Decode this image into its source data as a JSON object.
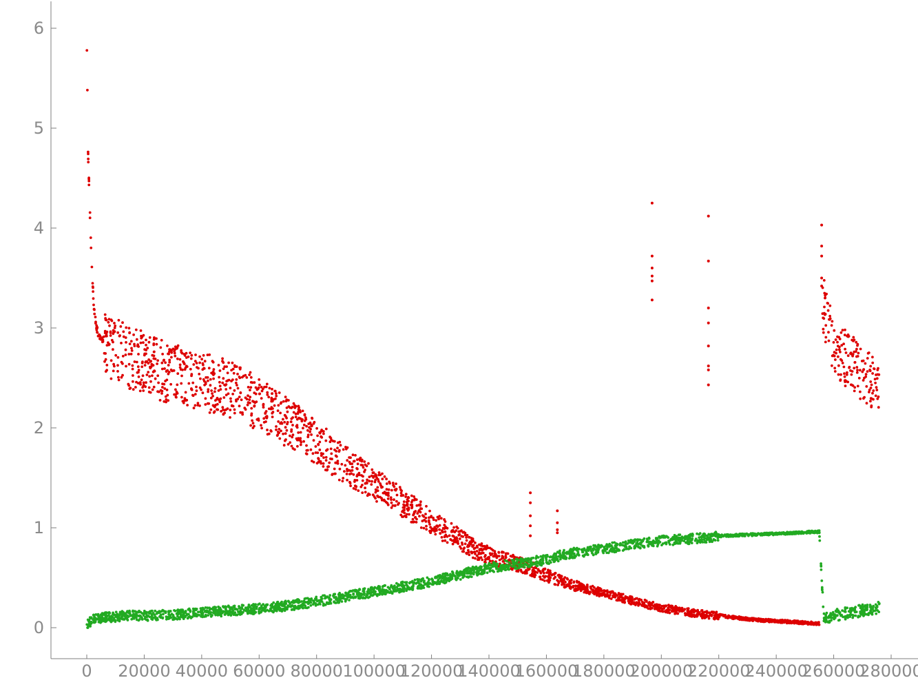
{
  "chart_data": {
    "type": "scatter",
    "title": "",
    "xlabel": "",
    "ylabel": "",
    "xlim": [
      -12000,
      290000
    ],
    "ylim": [
      -0.3,
      6.25
    ],
    "x_ticks": [
      0,
      20000,
      40000,
      60000,
      80000,
      100000,
      120000,
      140000,
      160000,
      180000,
      200000,
      220000,
      240000,
      260000,
      280000
    ],
    "x_tick_labels": [
      "0",
      "20000",
      "40000",
      "60000",
      "80000",
      "100000",
      "120000",
      "140000",
      "160000",
      "180000",
      "200000",
      "220000",
      "240000",
      "260000",
      "280000"
    ],
    "y_ticks": [
      0,
      1,
      2,
      3,
      4,
      5,
      6
    ],
    "y_tick_labels": [
      "0",
      "1",
      "2",
      "3",
      "4",
      "5",
      "6"
    ],
    "grid": false,
    "legend": "none",
    "series": [
      {
        "color": "#dd0000",
        "x": [
          0,
          500,
          1000,
          1500,
          2000,
          2500,
          3000,
          3500,
          4000,
          5000,
          6000,
          7000,
          8000,
          9000,
          10000,
          12000,
          14000,
          16000,
          18000,
          20000,
          22000,
          24000,
          26000,
          28000,
          30000,
          32000,
          34000,
          36000,
          38000,
          40000,
          43000,
          46000,
          50000,
          54000,
          58000,
          62000,
          66000,
          70000,
          74000,
          78000,
          82000,
          86000,
          90000,
          94000,
          98000,
          102000,
          106000,
          110000,
          114000,
          118000,
          122000,
          126000,
          130000,
          134000,
          138000,
          142000,
          146000,
          150000,
          154000,
          158000,
          162000,
          166000,
          170000,
          174000,
          178000,
          182000,
          186000,
          190000,
          194000,
          197000,
          200000,
          204000,
          208000,
          212000,
          216000,
          220000,
          226000,
          232000,
          238000,
          244000,
          250000,
          255000,
          256000,
          258000,
          260000,
          262000,
          264000,
          266000,
          268000,
          270000,
          272000,
          274000,
          276000
        ],
        "y": [
          5.9,
          4.7,
          4.25,
          3.8,
          3.45,
          3.2,
          3.1,
          3.0,
          2.95,
          2.9,
          2.88,
          2.85,
          2.82,
          2.8,
          2.78,
          2.75,
          2.72,
          2.7,
          2.68,
          2.66,
          2.63,
          2.6,
          2.58,
          2.56,
          2.55,
          2.53,
          2.52,
          2.5,
          2.48,
          2.46,
          2.44,
          2.42,
          2.38,
          2.33,
          2.27,
          2.2,
          2.12,
          2.05,
          1.98,
          1.9,
          1.82,
          1.72,
          1.63,
          1.55,
          1.48,
          1.4,
          1.32,
          1.25,
          1.17,
          1.1,
          1.02,
          0.95,
          0.88,
          0.8,
          0.75,
          0.7,
          0.67,
          0.64,
          0.6,
          0.55,
          0.5,
          0.46,
          0.42,
          0.39,
          0.36,
          0.33,
          0.3,
          0.27,
          0.24,
          0.22,
          0.2,
          0.18,
          0.16,
          0.14,
          0.13,
          0.12,
          0.1,
          0.08,
          0.07,
          0.06,
          0.05,
          0.04,
          3.3,
          3.0,
          2.85,
          2.75,
          2.7,
          2.65,
          2.6,
          2.55,
          2.5,
          2.45,
          2.3
        ],
        "outliers": [
          {
            "x": 196800,
            "y": [
              4.25,
              3.72,
              3.6,
              3.52,
              3.47,
              3.28
            ]
          },
          {
            "x": 216400,
            "y": [
              4.12,
              3.67,
              3.2,
              3.05,
              2.82,
              2.62,
              2.58,
              2.43
            ]
          },
          {
            "x": 255800,
            "y": [
              4.03,
              3.82,
              3.72,
              3.5,
              3.42
            ]
          },
          {
            "x": 154400,
            "y": [
              1.35,
              1.25,
              1.12,
              1.02,
              0.92
            ]
          },
          {
            "x": 163800,
            "y": [
              1.17,
              1.05,
              0.98,
              0.95
            ]
          }
        ]
      },
      {
        "color": "#22aa22",
        "x": [
          0,
          2000,
          5000,
          10000,
          15000,
          20000,
          30000,
          40000,
          50000,
          60000,
          70000,
          80000,
          90000,
          100000,
          110000,
          120000,
          130000,
          140000,
          150000,
          155000,
          160000,
          162000,
          166000,
          170000,
          175000,
          180000,
          185000,
          190000,
          195000,
          197000,
          200000,
          205000,
          210000,
          215000,
          218000,
          222000,
          230000,
          240000,
          250000,
          255000,
          256500,
          260000,
          265000,
          270000,
          276000
        ],
        "y": [
          0.02,
          0.08,
          0.1,
          0.11,
          0.12,
          0.12,
          0.13,
          0.15,
          0.17,
          0.19,
          0.22,
          0.26,
          0.31,
          0.36,
          0.41,
          0.46,
          0.53,
          0.6,
          0.64,
          0.66,
          0.68,
          0.7,
          0.73,
          0.75,
          0.77,
          0.79,
          0.81,
          0.83,
          0.85,
          0.86,
          0.87,
          0.88,
          0.89,
          0.9,
          0.91,
          0.92,
          0.93,
          0.94,
          0.955,
          0.96,
          0.1,
          0.12,
          0.15,
          0.17,
          0.2
        ]
      }
    ]
  }
}
